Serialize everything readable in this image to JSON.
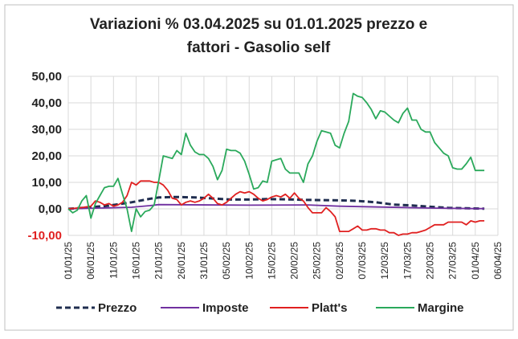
{
  "chart_data": {
    "type": "line",
    "title_lines": [
      "Variazioni % 03.04.2025 su 01.01.2025 prezzo e",
      "fattori - Gasolio self"
    ],
    "xlabel": "",
    "ylabel": "",
    "ylim": [
      -10,
      50
    ],
    "y_ticks": [
      "50,00",
      "40,00",
      "30,00",
      "20,00",
      "10,00",
      "0,00",
      "-10,00"
    ],
    "y_tick_values": [
      50,
      40,
      30,
      20,
      10,
      0,
      -10
    ],
    "x_tick_labels": [
      "01/01/25",
      "06/01/25",
      "11/01/25",
      "16/01/25",
      "21/01/25",
      "26/01/25",
      "31/01/25",
      "05/02/25",
      "10/02/25",
      "15/02/25",
      "20/02/25",
      "25/02/25",
      "02/03/25",
      "07/03/25",
      "12/03/25",
      "17/03/25",
      "22/03/25",
      "27/03/25",
      "01/04/25",
      "06/04/25"
    ],
    "x_range_days": [
      0,
      95
    ],
    "grid": true,
    "legend_position": "bottom",
    "series": [
      {
        "name": "Prezzo",
        "color": "#1f2d4f",
        "dash": true,
        "x": [
          0,
          4,
          9,
          14,
          18,
          20,
          24,
          28,
          32,
          36,
          40,
          44,
          48,
          52,
          56,
          60,
          64,
          68,
          72,
          76,
          80,
          84,
          88,
          91,
          92
        ],
        "y": [
          0,
          0.5,
          1.2,
          2.5,
          3.8,
          4.3,
          4.5,
          4.3,
          3.9,
          3.5,
          3.5,
          3.7,
          3.6,
          3.4,
          3.3,
          3.2,
          3.0,
          2.5,
          1.6,
          1.3,
          0.8,
          0.4,
          0.2,
          0.1,
          0.1
        ]
      },
      {
        "name": "Imposte",
        "color": "#7030a0",
        "dash": false,
        "x": [
          0,
          14,
          18,
          20,
          40,
          53,
          60,
          80,
          90,
          92
        ],
        "y": [
          0,
          0.6,
          1.2,
          1.6,
          1.4,
          1.5,
          1.0,
          0.3,
          0.1,
          0.1
        ]
      },
      {
        "name": "Platt's",
        "color": "#e02020",
        "dash": false,
        "x": [
          0,
          3,
          5,
          6,
          7,
          8,
          9,
          10,
          11,
          12,
          13,
          14,
          15,
          16,
          17,
          18,
          19,
          20,
          21,
          22,
          23,
          24,
          25,
          26,
          27,
          28,
          29,
          30,
          31,
          32,
          33,
          34,
          35,
          36,
          37,
          38,
          39,
          40,
          41,
          42,
          43,
          44,
          45,
          46,
          47,
          48,
          49,
          50,
          51,
          52,
          53,
          54,
          55,
          56,
          57,
          58,
          59,
          60,
          61,
          62,
          63,
          64,
          65,
          66,
          67,
          68,
          69,
          70,
          71,
          72,
          73,
          74,
          75,
          76,
          77,
          78,
          79,
          80,
          81,
          82,
          83,
          84,
          85,
          86,
          87,
          88,
          89,
          90,
          91,
          92
        ],
        "y": [
          0,
          0.5,
          1.0,
          3.0,
          2.5,
          1.5,
          2.0,
          1.0,
          1.5,
          2.5,
          5.0,
          10.0,
          9.0,
          10.5,
          10.5,
          10.5,
          10.0,
          10.0,
          9.0,
          7.0,
          4.0,
          3.5,
          1.5,
          2.5,
          3.0,
          2.5,
          3.0,
          4.0,
          5.5,
          4.0,
          2.0,
          1.5,
          2.5,
          4.0,
          5.5,
          6.5,
          6.0,
          6.5,
          5.5,
          4.0,
          3.0,
          3.5,
          4.5,
          5.0,
          4.5,
          5.5,
          4.0,
          6.0,
          4.0,
          3.0,
          0.5,
          -1.5,
          -1.5,
          -1.5,
          0.5,
          -1.0,
          -3.0,
          -8.5,
          -8.5,
          -8.5,
          -7.5,
          -6.5,
          -8.0,
          -8.0,
          -7.5,
          -7.5,
          -8.0,
          -8.0,
          -9.0,
          -9.0,
          -10.0,
          -9.5,
          -9.5,
          -9.0,
          -9.0,
          -8.5,
          -8.0,
          -7.0,
          -6.0,
          -6.0,
          -6.0,
          -5.0,
          -5.0,
          -5.0,
          -5.0,
          -6.0,
          -4.5,
          -5.0,
          -4.5,
          -4.5
        ]
      },
      {
        "name": "Margine",
        "color": "#2aa95b",
        "dash": false,
        "x": [
          0,
          1,
          2,
          3,
          4,
          5,
          6,
          7,
          8,
          9,
          10,
          11,
          12,
          13,
          14,
          15,
          16,
          17,
          18,
          19,
          20,
          21,
          22,
          23,
          24,
          25,
          26,
          27,
          28,
          29,
          30,
          31,
          32,
          33,
          34,
          35,
          36,
          37,
          38,
          39,
          40,
          41,
          42,
          43,
          44,
          45,
          46,
          47,
          48,
          49,
          50,
          51,
          52,
          53,
          54,
          55,
          56,
          57,
          58,
          59,
          60,
          61,
          62,
          63,
          64,
          65,
          66,
          67,
          68,
          69,
          70,
          71,
          72,
          73,
          74,
          75,
          76,
          77,
          78,
          79,
          80,
          81,
          82,
          83,
          84,
          85,
          86,
          87,
          88,
          89,
          90,
          91,
          92
        ],
        "y": [
          0,
          -1.5,
          -0.5,
          3.0,
          5.0,
          -3.5,
          2.0,
          5.0,
          8.0,
          8.5,
          8.5,
          11.5,
          5.5,
          0.0,
          -8.5,
          0.0,
          -3.0,
          -1.0,
          -0.5,
          1.5,
          10.5,
          20.0,
          19.5,
          19.0,
          22.0,
          20.5,
          28.5,
          24.0,
          21.5,
          20.5,
          20.5,
          19.0,
          16.0,
          11.0,
          14.5,
          22.5,
          22.0,
          22.0,
          21.0,
          18.0,
          13.0,
          7.5,
          8.0,
          10.5,
          10.0,
          18.0,
          18.5,
          19.0,
          15.0,
          13.5,
          13.5,
          13.5,
          10.0,
          17.0,
          20.0,
          25.5,
          29.5,
          29.0,
          28.5,
          24.0,
          23.0,
          28.5,
          33.0,
          43.5,
          42.5,
          42.0,
          40.0,
          37.5,
          34.0,
          37.0,
          36.5,
          35.0,
          33.5,
          32.5,
          36.0,
          38.0,
          33.5,
          33.5,
          30.0,
          29.0,
          29.0,
          25.0,
          23.0,
          21.0,
          20.0,
          15.5,
          15.0,
          15.0,
          17.0,
          19.5,
          14.5,
          14.5,
          14.5
        ]
      }
    ]
  }
}
